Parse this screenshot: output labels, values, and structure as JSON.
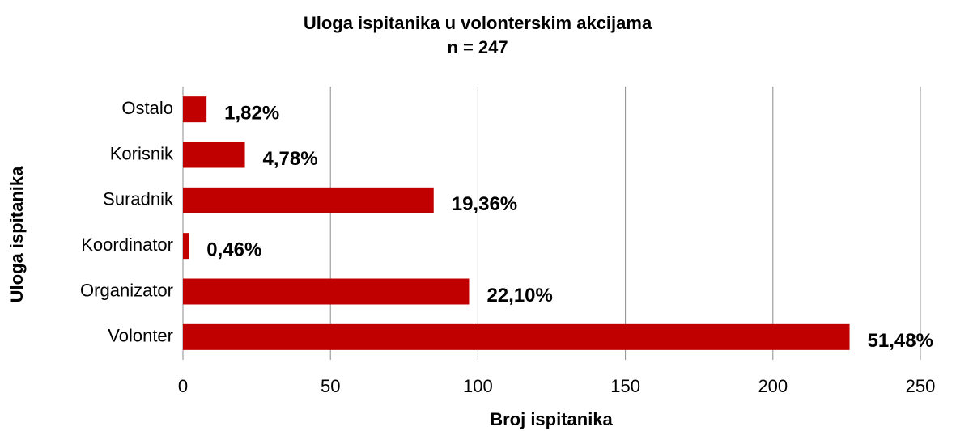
{
  "chart_data": {
    "type": "bar",
    "orientation": "horizontal",
    "title": "Uloga ispitanika u volonterskim akcijama",
    "subtitle": "n = 247",
    "x_label": "Broj ispitanika",
    "y_label": "Uloga ispitanika",
    "categories": [
      "Ostalo",
      "Korisnik",
      "Suradnik",
      "Koordinator",
      "Organizator",
      "Volonter"
    ],
    "values": [
      8,
      21,
      85,
      2,
      97,
      226
    ],
    "percent_labels": [
      "1,82%",
      "4,78%",
      "19,36%",
      "0,46%",
      "22,10%",
      "51,48%"
    ],
    "color": "#c00000",
    "xlim": [
      0,
      250
    ],
    "xticks": [
      0,
      50,
      100,
      150,
      200,
      250
    ],
    "grid": true
  }
}
